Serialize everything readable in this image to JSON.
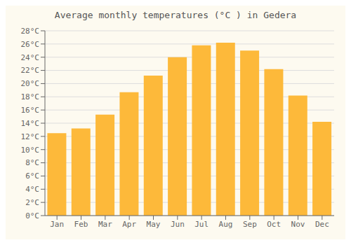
{
  "chart_data": {
    "type": "bar",
    "title": "Average monthly temperatures (°C ) in Gedera",
    "categories": [
      "Jan",
      "Feb",
      "Mar",
      "Apr",
      "May",
      "Jun",
      "Jul",
      "Aug",
      "Sep",
      "Oct",
      "Nov",
      "Dec"
    ],
    "values": [
      12.5,
      13.2,
      15.3,
      18.7,
      21.2,
      24.0,
      25.8,
      26.2,
      25.0,
      22.2,
      18.2,
      14.2
    ],
    "color": "#FDB93A",
    "ylim": [
      0,
      28
    ],
    "yticks": [
      {
        "value": 0,
        "label": "0°C"
      },
      {
        "value": 2,
        "label": "2°C"
      },
      {
        "value": 4,
        "label": "4°C"
      },
      {
        "value": 6,
        "label": "6°C"
      },
      {
        "value": 8,
        "label": "8°C"
      },
      {
        "value": 10,
        "label": "10°C"
      },
      {
        "value": 12,
        "label": "12°C"
      },
      {
        "value": 14,
        "label": "14°C"
      },
      {
        "value": 16,
        "label": "16°C"
      },
      {
        "value": 18,
        "label": "18°C"
      },
      {
        "value": 20,
        "label": "20°C"
      },
      {
        "value": 22,
        "label": "22°C"
      },
      {
        "value": 24,
        "label": "24°C"
      },
      {
        "value": 26,
        "label": "26°C"
      },
      {
        "value": 28,
        "label": "28°C"
      }
    ],
    "grid": true
  }
}
